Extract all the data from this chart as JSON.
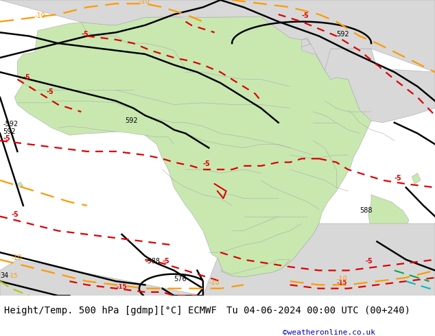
{
  "title_left": "Height/Temp. 500 hPa [gdmp][°C] ECMWF",
  "title_right": "Tu 04-06-2024 00:00 UTC (00+240)",
  "credit": "©weatheronline.co.uk",
  "bg_color": "#ffffff",
  "ocean_color": "#d0d0d0",
  "land_green_color": "#c8e8b0",
  "land_gray_color": "#d8d8d8",
  "border_color": "#aaaaaa",
  "black": "#000000",
  "red": "#dd0000",
  "orange": "#ff9900",
  "yellow_green": "#aacc00",
  "cyan": "#00bbbb",
  "green": "#00aa44",
  "text_color": "#000000",
  "credit_color": "#0000bb",
  "font_size_title": 10,
  "font_size_credit": 8,
  "figsize": [
    6.34,
    4.9
  ],
  "dpi": 100
}
